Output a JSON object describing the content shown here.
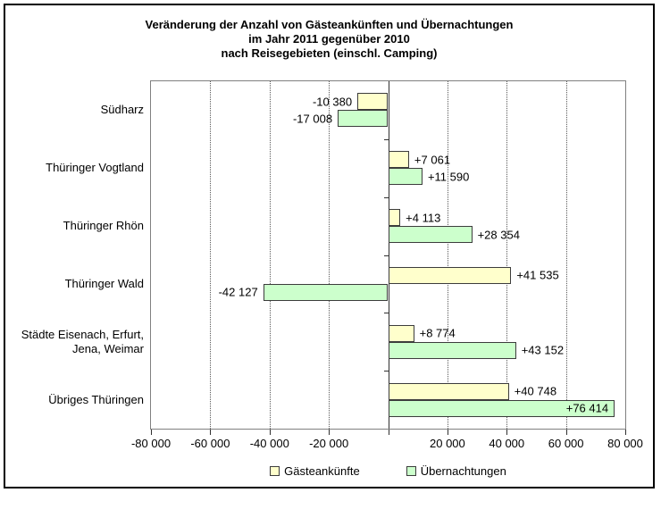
{
  "title": {
    "line1": "Veränderung der Anzahl von Gästeankünften und Übernachtungen",
    "line2": "im Jahr 2011 gegenüber 2010",
    "line3": "nach Reisegebieten (einschl. Camping)"
  },
  "chart_data": {
    "type": "bar",
    "orientation": "horizontal",
    "title": "Veränderung der Anzahl von Gästeankünften und Übernachtungen im Jahr 2011 gegenüber 2010 nach Reisegebieten (einschl. Camping)",
    "categories": [
      "Südharz",
      "Thüringer Vogtland",
      "Thüringer Rhön",
      "Thüringer Wald",
      "Städte Eisenach, Erfurt,\nJena, Weimar",
      "Übriges Thüringen"
    ],
    "series": [
      {
        "name": "Gästeankünfte",
        "color": "#FFFFCC",
        "values": [
          -10380,
          7061,
          4113,
          41535,
          8774,
          40748
        ],
        "labels": [
          "-10 380",
          "+7 061",
          "+4 113",
          "+41 535",
          "+8 774",
          "+40 748"
        ]
      },
      {
        "name": "Übernachtungen",
        "color": "#CCFFCC",
        "values": [
          -17008,
          11590,
          28354,
          -42127,
          43152,
          76414
        ],
        "labels": [
          "-17 008",
          "+11 590",
          "+28 354",
          "-42 127",
          "+43 152",
          "+76 414"
        ]
      }
    ],
    "xlim": [
      -80000,
      80000
    ],
    "x_ticks": [
      -80000,
      -60000,
      -40000,
      -20000,
      0,
      20000,
      40000,
      60000,
      80000
    ],
    "x_tick_labels": [
      "-80 000",
      "-60 000",
      "-40 000",
      "-20 000",
      "",
      "20 000",
      "40 000",
      "60 000",
      "80 000"
    ],
    "gridlines": [
      -60000,
      -40000,
      -20000,
      20000,
      40000,
      60000
    ],
    "grid_style": "dotted",
    "legend_position": "bottom"
  },
  "legend": {
    "items": [
      {
        "label": "Gästeankünfte",
        "color": "#FFFFCC"
      },
      {
        "label": "Übernachtungen",
        "color": "#CCFFCC"
      }
    ]
  }
}
